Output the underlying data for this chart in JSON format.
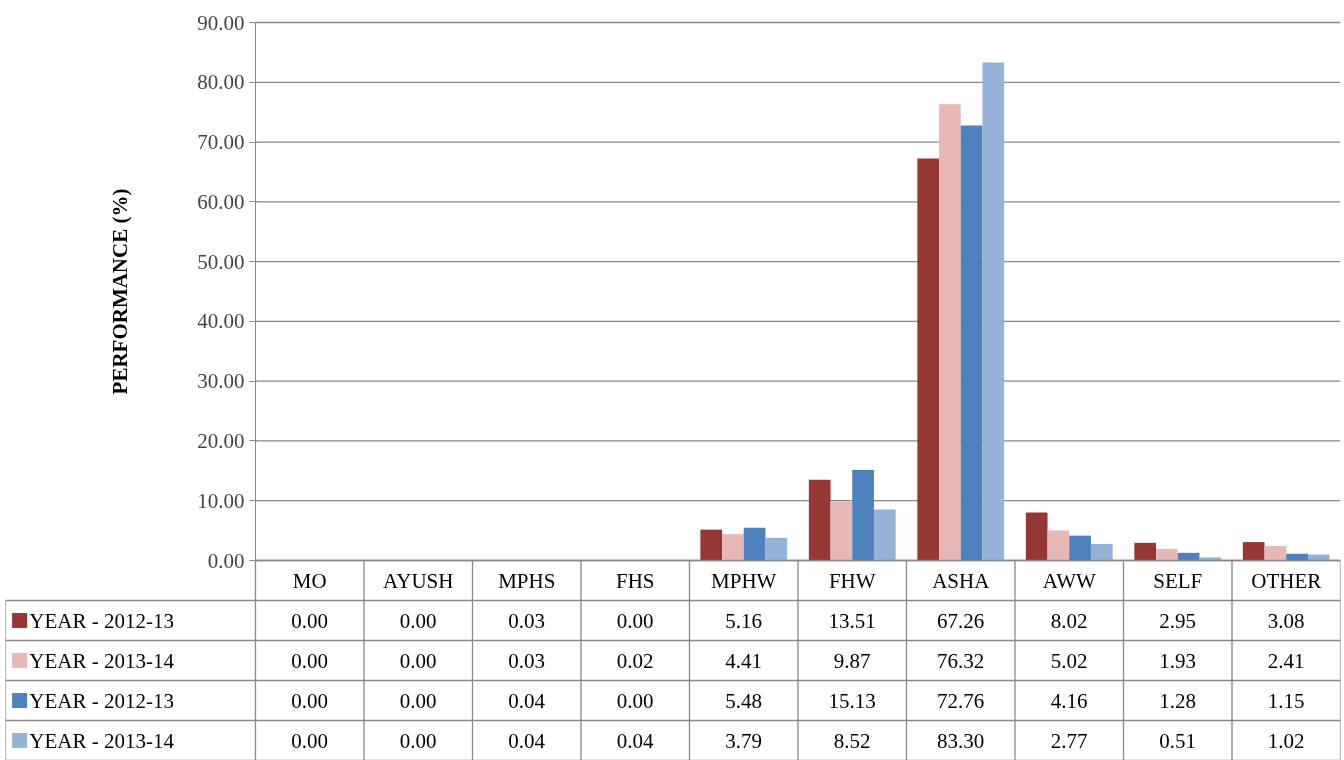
{
  "chart_data": {
    "type": "bar",
    "ylabel": "PERFORMANCE (%)",
    "categories": [
      "MO",
      "AYUSH",
      "MPHS",
      "FHS",
      "MPHW",
      "FHW",
      "ASHA",
      "AWW",
      "SELF",
      "OTHER"
    ],
    "series": [
      {
        "name": "YEAR - 2012-13",
        "color": "#953735",
        "values": [
          0.0,
          0.0,
          0.03,
          0.0,
          5.16,
          13.51,
          67.26,
          8.02,
          2.95,
          3.08
        ],
        "value_labels": [
          "0.00",
          "0.00",
          "0.03",
          "0.00",
          "5.16",
          "13.51",
          "67.26",
          "8.02",
          "2.95",
          "3.08"
        ]
      },
      {
        "name": "YEAR - 2013-14",
        "color": "#e6b9b8",
        "values": [
          0.0,
          0.0,
          0.03,
          0.02,
          4.41,
          9.87,
          76.32,
          5.02,
          1.93,
          2.41
        ],
        "value_labels": [
          "0.00",
          "0.00",
          "0.03",
          "0.02",
          "4.41",
          "9.87",
          "76.32",
          "5.02",
          "1.93",
          "2.41"
        ]
      },
      {
        "name": "YEAR - 2012-13",
        "color": "#4f81bd",
        "values": [
          0.0,
          0.0,
          0.04,
          0.0,
          5.48,
          15.13,
          72.76,
          4.16,
          1.28,
          1.15
        ],
        "value_labels": [
          "0.00",
          "0.00",
          "0.04",
          "0.00",
          "5.48",
          "15.13",
          "72.76",
          "4.16",
          "1.28",
          "1.15"
        ]
      },
      {
        "name": "YEAR - 2013-14",
        "color": "#95b3d7",
        "values": [
          0.0,
          0.0,
          0.04,
          0.04,
          3.79,
          8.52,
          83.3,
          2.77,
          0.51,
          1.02
        ],
        "value_labels": [
          "0.00",
          "0.00",
          "0.04",
          "0.04",
          "3.79",
          "8.52",
          "83.30",
          "2.77",
          "0.51",
          "1.02"
        ]
      }
    ],
    "ylim": [
      0,
      90
    ],
    "yticks": [
      {
        "value": 0,
        "label": "0.00"
      },
      {
        "value": 10,
        "label": "10.00"
      },
      {
        "value": 20,
        "label": "20.00"
      },
      {
        "value": 30,
        "label": "30.00"
      },
      {
        "value": 40,
        "label": "40.00"
      },
      {
        "value": 50,
        "label": "50.00"
      },
      {
        "value": 60,
        "label": "60.00"
      },
      {
        "value": 70,
        "label": "70.00"
      },
      {
        "value": 80,
        "label": "80.00"
      },
      {
        "value": 90,
        "label": "90.00"
      }
    ],
    "grid": "y",
    "legend": "bottom left"
  }
}
